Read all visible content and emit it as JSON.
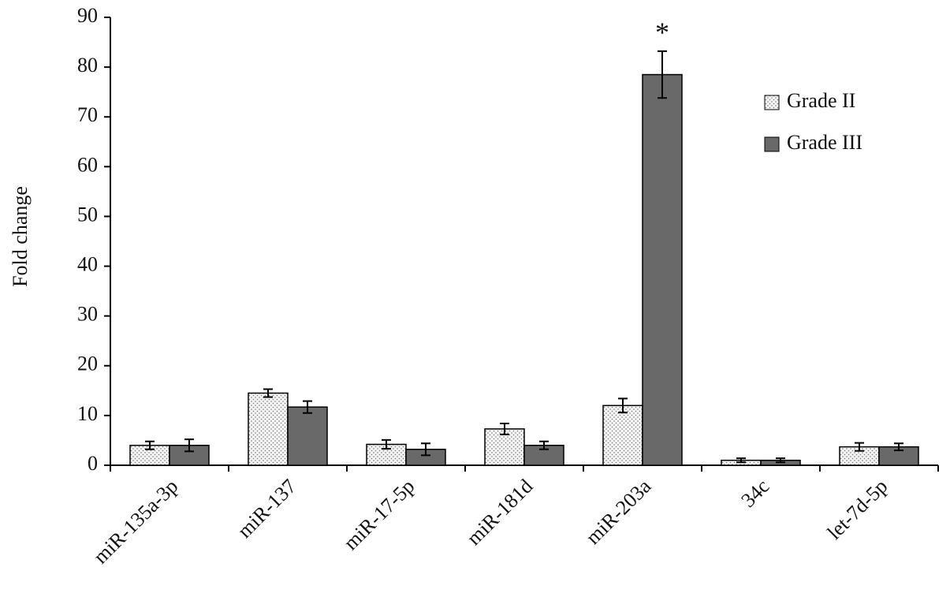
{
  "chart_data": {
    "type": "bar",
    "ylabel": "Fold change",
    "categories": [
      "miR-135a-3p",
      "miR-137",
      "miR-17-5p",
      "miR-181d",
      "miR-203a",
      "34c",
      "let-7d-5p"
    ],
    "series": [
      {
        "name": "Grade II",
        "color": "#e6e6e6",
        "pattern": "dots",
        "values": [
          4.0,
          14.5,
          4.2,
          7.3,
          12.0,
          1.0,
          3.7
        ],
        "errors": [
          0.8,
          0.8,
          0.9,
          1.1,
          1.4,
          0.4,
          0.8
        ]
      },
      {
        "name": "Grade III",
        "color": "#696969",
        "values": [
          4.0,
          11.7,
          3.2,
          4.0,
          78.5,
          1.0,
          3.7
        ],
        "errors": [
          1.2,
          1.2,
          1.2,
          0.8,
          4.7,
          0.4,
          0.7
        ]
      }
    ],
    "annotations": [
      {
        "text": "*",
        "category": "miR-203a",
        "series": "Grade III"
      }
    ],
    "ylim": [
      0,
      90
    ],
    "yticks": [
      0,
      10,
      20,
      30,
      40,
      50,
      60,
      70,
      80,
      90
    ],
    "grid": false,
    "legend": "upper right"
  }
}
